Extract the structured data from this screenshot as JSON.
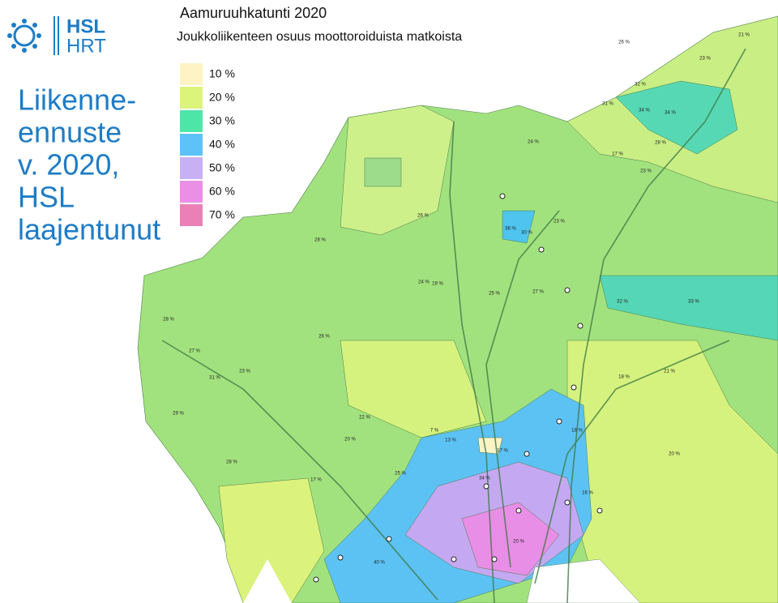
{
  "logo": {
    "line1": "HSL",
    "line2": "HRT"
  },
  "side_title": [
    "Liikenne-",
    "ennuste",
    "v. 2020,",
    "HSL",
    "laajentunut"
  ],
  "map": {
    "title": "Aamuruuhkatunti 2020",
    "subtitle": "Joukkoliikenteen osuus moottoroiduista matkoista",
    "legend": [
      {
        "label": "10 %",
        "color": "#fdf3c4"
      },
      {
        "label": "20 %",
        "color": "#dcf47a"
      },
      {
        "label": "30 %",
        "color": "#4ee6a8"
      },
      {
        "label": "40 %",
        "color": "#5cc2f7"
      },
      {
        "label": "50 %",
        "color": "#c8b0f4"
      },
      {
        "label": "60 %",
        "color": "#ea8ee6"
      },
      {
        "label": "70 %",
        "color": "#ea80b6"
      }
    ],
    "area_labels": [
      "26 %",
      "21 %",
      "23 %",
      "32 %",
      "31 %",
      "34 %",
      "34 %",
      "28 %",
      "17 %",
      "23 %",
      "24 %",
      "26 %",
      "28 %",
      "36 %",
      "30 %",
      "23 %",
      "27 %",
      "25 %",
      "28 %",
      "27 %",
      "31 %",
      "23 %",
      "29 %",
      "19 %",
      "26 %",
      "28 %",
      "20 %",
      "17 %",
      "24 %",
      "32 %",
      "33 %",
      "21 %",
      "18 %",
      "16 %",
      "20 %",
      "22 %",
      "7 %",
      "13 %",
      "34 %",
      "40 %",
      "17 %",
      "18 %",
      "25 %",
      "20 %"
    ]
  }
}
